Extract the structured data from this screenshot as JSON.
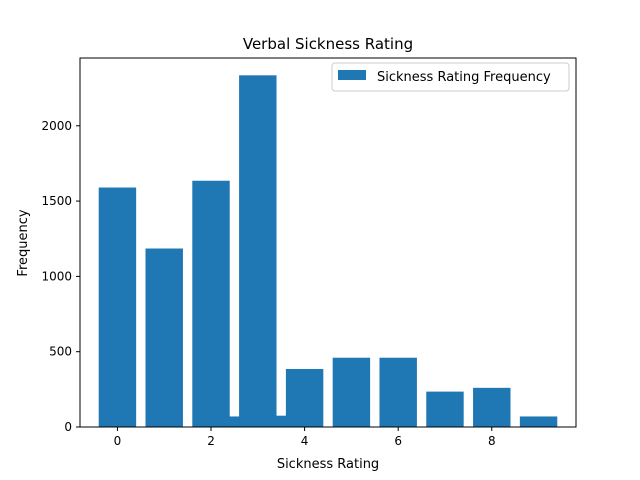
{
  "chart_data": {
    "type": "bar",
    "title": "Verbal Sickness Rating",
    "xlabel": "Sickness Rating",
    "ylabel": "Frequency",
    "xlim": [
      -0.8,
      9.8
    ],
    "ylim": [
      0,
      2450
    ],
    "xticks": [
      0,
      2,
      4,
      6,
      8
    ],
    "yticks": [
      0,
      500,
      1000,
      1500,
      2000
    ],
    "bar_width": 0.8,
    "legend_position": "top-right",
    "grid": false,
    "series": [
      {
        "name": "Sickness Rating Frequency",
        "color": "#1f77b4",
        "x": [
          0,
          1,
          2,
          2.5,
          3,
          3.5,
          4,
          5,
          6,
          7,
          8,
          9
        ],
        "values": [
          1590,
          1185,
          1635,
          70,
          2335,
          75,
          385,
          460,
          460,
          235,
          260,
          70
        ]
      }
    ]
  }
}
